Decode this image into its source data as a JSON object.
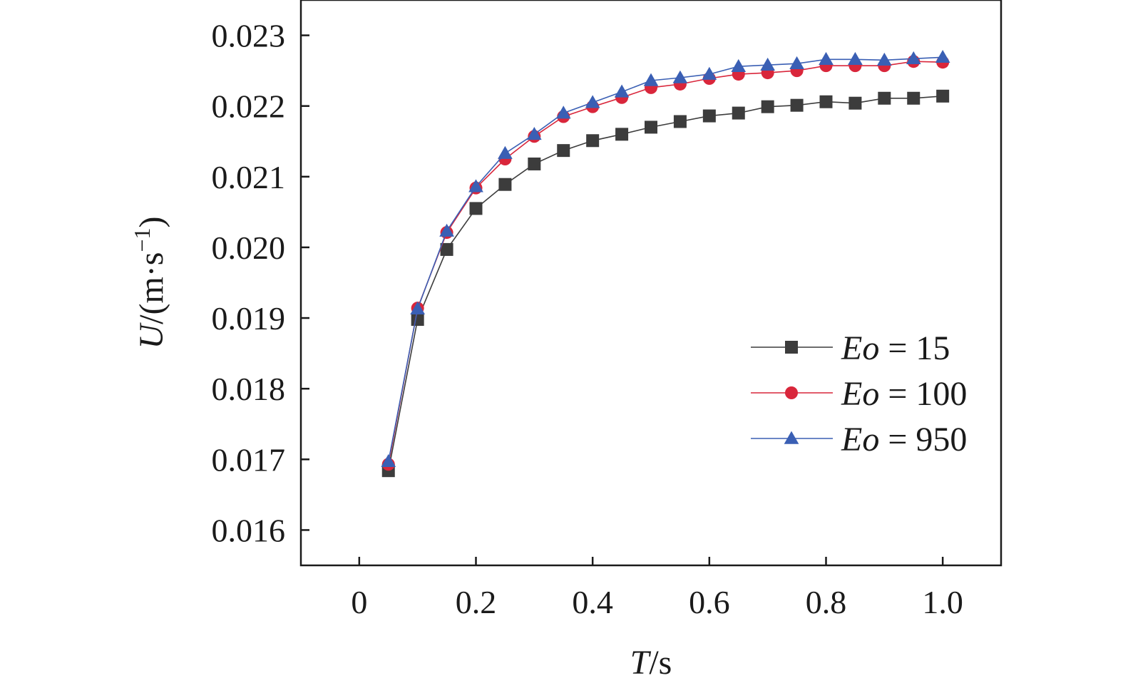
{
  "chart_data": {
    "type": "line",
    "xlabel": {
      "var": "T",
      "unit": "/s"
    },
    "ylabel": {
      "var": "U",
      "unit_prefix": "/(m·s",
      "unit_exp": "−1",
      "unit_suffix": ")"
    },
    "xlim": [
      -0.1,
      1.1
    ],
    "ylim": [
      0.0155,
      0.0235
    ],
    "xticks": [
      0,
      0.2,
      0.4,
      0.6,
      0.8,
      1.0
    ],
    "xtick_labels": [
      "0",
      "0.2",
      "0.4",
      "0.6",
      "0.8",
      "1.0"
    ],
    "yticks": [
      0.016,
      0.017,
      0.018,
      0.019,
      0.02,
      0.021,
      0.022,
      0.023
    ],
    "ytick_labels": [
      "0.016",
      "0.017",
      "0.018",
      "0.019",
      "0.020",
      "0.021",
      "0.022",
      "0.023"
    ],
    "grid": false,
    "legend_position": "right",
    "x": [
      0.05,
      0.1,
      0.15,
      0.2,
      0.25,
      0.3,
      0.35,
      0.4,
      0.45,
      0.5,
      0.55,
      0.6,
      0.65,
      0.7,
      0.75,
      0.8,
      0.85,
      0.9,
      0.95,
      1.0
    ],
    "series": [
      {
        "name": "Eo = 15",
        "name_var": "Eo",
        "name_rest": " = 15",
        "marker": "square",
        "color": "#3c3c3c",
        "values": [
          0.01684,
          0.01898,
          0.01997,
          0.02055,
          0.02089,
          0.02118,
          0.02137,
          0.02151,
          0.0216,
          0.0217,
          0.02178,
          0.02186,
          0.0219,
          0.02199,
          0.02201,
          0.02206,
          0.02204,
          0.02211,
          0.02211,
          0.02214
        ]
      },
      {
        "name": "Eo = 100",
        "name_var": "Eo",
        "name_rest": " = 100",
        "marker": "circle",
        "color": "#d9263b",
        "values": [
          0.01693,
          0.01914,
          0.02021,
          0.02084,
          0.02125,
          0.02157,
          0.02185,
          0.02199,
          0.02212,
          0.02226,
          0.02231,
          0.02239,
          0.02245,
          0.02247,
          0.0225,
          0.02257,
          0.02257,
          0.02257,
          0.02263,
          0.02262
        ]
      },
      {
        "name": "Eo = 950",
        "name_var": "Eo",
        "name_rest": " = 950",
        "marker": "triangle",
        "color": "#3a5fb4",
        "values": [
          0.01697,
          0.01913,
          0.02023,
          0.02086,
          0.02133,
          0.0216,
          0.0219,
          0.02205,
          0.0222,
          0.02236,
          0.0224,
          0.02245,
          0.02256,
          0.02258,
          0.0226,
          0.02266,
          0.02266,
          0.02265,
          0.02267,
          0.02269
        ]
      }
    ]
  }
}
